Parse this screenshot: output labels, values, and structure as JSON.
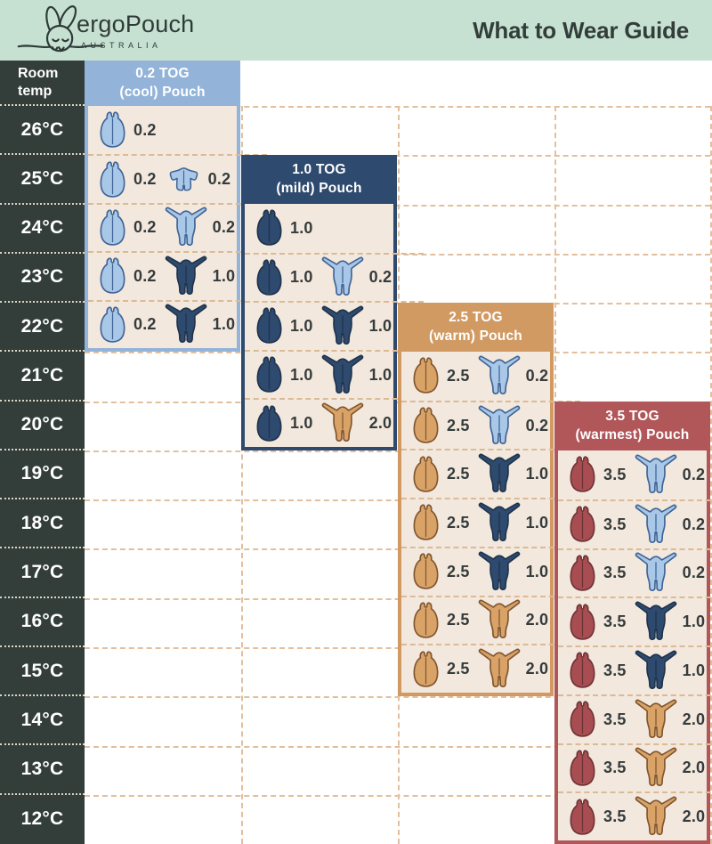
{
  "header": {
    "brand": "ergoPouch",
    "brand_sub": "AUSTRALIA",
    "title": "What to Wear Guide"
  },
  "colors": {
    "mint": "#c6e1d2",
    "dark": "#333e3b",
    "beige": "#f2e8dd",
    "dash_line": "#e2bf9e",
    "lightblue": "#93b4d8",
    "navy": "#2e4a6e",
    "tan": "#d09a62",
    "red": "#b15659",
    "label_text": "#363b3c",
    "icon_fills": {
      "lightblue": {
        "fill": "#a9c7e7",
        "stroke": "#3f6496"
      },
      "navy": {
        "fill": "#2e4a6e",
        "stroke": "#1f334b"
      },
      "tan": {
        "fill": "#d9a368",
        "stroke": "#80552e"
      },
      "red": {
        "fill": "#a84e52",
        "stroke": "#6e3336"
      },
      "white": {
        "fill": "#ffffff",
        "stroke": "#3a3f41"
      }
    }
  },
  "temp_column": {
    "header": "Room\ntemp",
    "temps": [
      "26°C",
      "25°C",
      "24°C",
      "23°C",
      "22°C",
      "21°C",
      "20°C",
      "19°C",
      "18°C",
      "17°C",
      "16°C",
      "15°C",
      "14°C",
      "13°C",
      "12°C"
    ]
  },
  "panels": [
    {
      "title_line1": "0.2 TOG",
      "title_line2": "(cool) Pouch",
      "color_key": "lightblue",
      "rows": [
        {
          "temp": "26°C",
          "items": [
            {
              "type": "pouch",
              "color": "lightblue",
              "tog": "0.2"
            }
          ]
        },
        {
          "temp": "25°C",
          "items": [
            {
              "type": "pouch",
              "color": "lightblue",
              "tog": "0.2"
            },
            {
              "type": "romper",
              "color": "lightblue",
              "tog": "0.2"
            }
          ]
        },
        {
          "temp": "24°C",
          "items": [
            {
              "type": "pouch",
              "color": "lightblue",
              "tog": "0.2"
            },
            {
              "type": "onesie",
              "color": "lightblue",
              "tog": "0.2"
            }
          ]
        },
        {
          "temp": "23°C",
          "items": [
            {
              "type": "pouch",
              "color": "lightblue",
              "tog": "0.2"
            },
            {
              "type": "onesie",
              "color": "navy",
              "tog": "1.0"
            }
          ]
        },
        {
          "temp": "22°C",
          "items": [
            {
              "type": "pouch",
              "color": "lightblue",
              "tog": "0.2"
            },
            {
              "type": "onesie",
              "color": "navy",
              "tog": "1.0"
            },
            {
              "type": "singlet",
              "color": "white",
              "tog": null
            }
          ]
        }
      ]
    },
    {
      "title_line1": "1.0 TOG",
      "title_line2": "(mild) Pouch",
      "color_key": "navy",
      "rows": [
        {
          "temp": "24°C",
          "items": [
            {
              "type": "pouch",
              "color": "navy",
              "tog": "1.0"
            }
          ]
        },
        {
          "temp": "23°C",
          "items": [
            {
              "type": "pouch",
              "color": "navy",
              "tog": "1.0"
            },
            {
              "type": "onesie",
              "color": "lightblue",
              "tog": "0.2"
            }
          ]
        },
        {
          "temp": "22°C",
          "items": [
            {
              "type": "pouch",
              "color": "navy",
              "tog": "1.0"
            },
            {
              "type": "onesie",
              "color": "navy",
              "tog": "1.0"
            }
          ]
        },
        {
          "temp": "21°C",
          "items": [
            {
              "type": "pouch",
              "color": "navy",
              "tog": "1.0"
            },
            {
              "type": "onesie",
              "color": "navy",
              "tog": "1.0"
            },
            {
              "type": "singlet",
              "color": "white",
              "tog": null
            }
          ]
        },
        {
          "temp": "20°C",
          "items": [
            {
              "type": "pouch",
              "color": "navy",
              "tog": "1.0"
            },
            {
              "type": "onesie",
              "color": "tan",
              "tog": "2.0"
            }
          ]
        }
      ]
    },
    {
      "title_line1": "2.5 TOG",
      "title_line2": "(warm) Pouch",
      "color_key": "tan",
      "rows": [
        {
          "temp": "21°C",
          "items": [
            {
              "type": "pouch",
              "color": "tan",
              "tog": "2.5"
            },
            {
              "type": "onesie",
              "color": "lightblue",
              "tog": "0.2"
            }
          ]
        },
        {
          "temp": "20°C",
          "items": [
            {
              "type": "pouch",
              "color": "tan",
              "tog": "2.5"
            },
            {
              "type": "onesie",
              "color": "lightblue",
              "tog": "0.2"
            },
            {
              "type": "singlet",
              "color": "white",
              "tog": null
            }
          ]
        },
        {
          "temp": "19°C",
          "items": [
            {
              "type": "pouch",
              "color": "tan",
              "tog": "2.5"
            },
            {
              "type": "onesie",
              "color": "navy",
              "tog": "1.0"
            }
          ]
        },
        {
          "temp": "18°C",
          "items": [
            {
              "type": "pouch",
              "color": "tan",
              "tog": "2.5"
            },
            {
              "type": "onesie",
              "color": "navy",
              "tog": "1.0"
            },
            {
              "type": "singlet",
              "color": "white",
              "tog": null
            }
          ]
        },
        {
          "temp": "17°C",
          "items": [
            {
              "type": "pouch",
              "color": "tan",
              "tog": "2.5"
            },
            {
              "type": "onesie",
              "color": "navy",
              "tog": "1.0"
            },
            {
              "type": "singlet",
              "color": "white",
              "tog": null
            }
          ]
        },
        {
          "temp": "16°C",
          "items": [
            {
              "type": "pouch",
              "color": "tan",
              "tog": "2.5"
            },
            {
              "type": "onesie",
              "color": "tan",
              "tog": "2.0"
            }
          ]
        },
        {
          "temp": "15°C",
          "items": [
            {
              "type": "pouch",
              "color": "tan",
              "tog": "2.5"
            },
            {
              "type": "onesie",
              "color": "tan",
              "tog": "2.0"
            },
            {
              "type": "singlet",
              "color": "white",
              "tog": null
            }
          ]
        }
      ]
    },
    {
      "title_line1": "3.5 TOG",
      "title_line2": "(warmest) Pouch",
      "color_key": "red",
      "rows": [
        {
          "temp": "19°C",
          "items": [
            {
              "type": "pouch",
              "color": "red",
              "tog": "3.5"
            },
            {
              "type": "onesie",
              "color": "lightblue",
              "tog": "0.2"
            }
          ]
        },
        {
          "temp": "18°C",
          "items": [
            {
              "type": "pouch",
              "color": "red",
              "tog": "3.5"
            },
            {
              "type": "onesie",
              "color": "lightblue",
              "tog": "0.2"
            }
          ]
        },
        {
          "temp": "17°C",
          "items": [
            {
              "type": "pouch",
              "color": "red",
              "tog": "3.5"
            },
            {
              "type": "onesie",
              "color": "lightblue",
              "tog": "0.2"
            },
            {
              "type": "singlet",
              "color": "white",
              "tog": null
            }
          ]
        },
        {
          "temp": "16°C",
          "items": [
            {
              "type": "pouch",
              "color": "red",
              "tog": "3.5"
            },
            {
              "type": "onesie",
              "color": "navy",
              "tog": "1.0"
            }
          ]
        },
        {
          "temp": "15°C",
          "items": [
            {
              "type": "pouch",
              "color": "red",
              "tog": "3.5"
            },
            {
              "type": "onesie",
              "color": "navy",
              "tog": "1.0"
            },
            {
              "type": "singlet",
              "color": "white",
              "tog": null
            }
          ]
        },
        {
          "temp": "14°C",
          "items": [
            {
              "type": "pouch",
              "color": "red",
              "tog": "3.5"
            },
            {
              "type": "onesie",
              "color": "tan",
              "tog": "2.0"
            }
          ]
        },
        {
          "temp": "13°C",
          "items": [
            {
              "type": "pouch",
              "color": "red",
              "tog": "3.5"
            },
            {
              "type": "onesie",
              "color": "tan",
              "tog": "2.0"
            },
            {
              "type": "singlet",
              "color": "white",
              "tog": null
            }
          ]
        },
        {
          "temp": "12°C",
          "items": [
            {
              "type": "pouch",
              "color": "red",
              "tog": "3.5"
            },
            {
              "type": "onesie",
              "color": "tan",
              "tog": "2.0"
            },
            {
              "type": "singlet",
              "color": "white",
              "tog": null
            }
          ]
        }
      ]
    }
  ]
}
